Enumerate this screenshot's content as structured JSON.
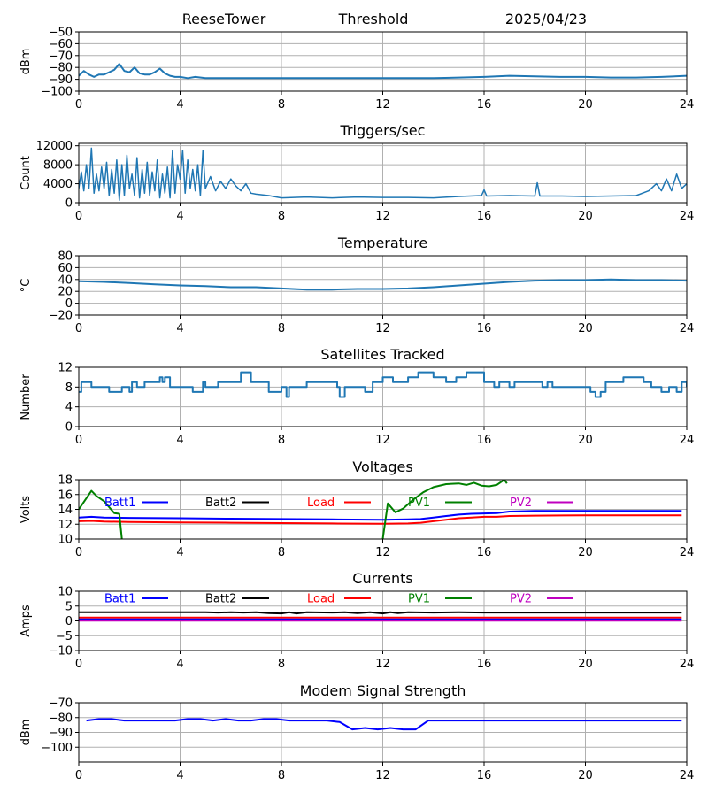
{
  "header": {
    "station": "ReeseTower",
    "mode": "Threshold",
    "date": "2025/04/23"
  },
  "colors": {
    "series": "#1f77b4",
    "batt1": "#0000ff",
    "batt2": "#000000",
    "load": "#ff0000",
    "pv1": "#008000",
    "pv2": "#bf00bf",
    "grid": "#b0b0b0"
  },
  "chart_data": [
    {
      "id": "threshold",
      "type": "line",
      "title": "",
      "ylabel": "dBm",
      "xlim": [
        0,
        24
      ],
      "ylim": [
        -100,
        -50
      ],
      "xticks": [
        0,
        4,
        8,
        12,
        16,
        20,
        24
      ],
      "yticks": [
        -50,
        -60,
        -70,
        -80,
        -90,
        -100
      ],
      "series": [
        {
          "color": "#1f77b4",
          "x": [
            0,
            0.2,
            0.4,
            0.6,
            0.8,
            1.0,
            1.2,
            1.4,
            1.6,
            1.8,
            2.0,
            2.2,
            2.4,
            2.6,
            2.8,
            3.0,
            3.2,
            3.4,
            3.6,
            3.8,
            4.0,
            4.3,
            4.6,
            5,
            6,
            7,
            8,
            9,
            10,
            11,
            12,
            13,
            14,
            15,
            16,
            17,
            18,
            19,
            20,
            21,
            22,
            23,
            24
          ],
          "y": [
            -87,
            -83,
            -86,
            -88,
            -86,
            -86,
            -84,
            -82,
            -77,
            -83,
            -84,
            -80,
            -85,
            -86,
            -86,
            -84,
            -81,
            -85,
            -87,
            -88,
            -88,
            -89,
            -88,
            -89,
            -89,
            -89,
            -89,
            -89,
            -89,
            -89,
            -89,
            -89,
            -89,
            -88.5,
            -88,
            -87,
            -87.5,
            -88,
            -88,
            -88.5,
            -88.5,
            -88,
            -87
          ]
        }
      ]
    },
    {
      "id": "triggers",
      "type": "line",
      "title": "Triggers/sec",
      "ylabel": "Count",
      "xlim": [
        0,
        24
      ],
      "ylim": [
        0,
        12500
      ],
      "xticks": [
        0,
        4,
        8,
        12,
        16,
        20,
        24
      ],
      "yticks": [
        0,
        4000,
        8000,
        12000
      ],
      "series": [
        {
          "color": "#1f77b4",
          "x": [
            0,
            0.1,
            0.2,
            0.3,
            0.4,
            0.5,
            0.6,
            0.7,
            0.8,
            0.9,
            1.0,
            1.1,
            1.2,
            1.3,
            1.4,
            1.5,
            1.6,
            1.7,
            1.8,
            1.9,
            2.0,
            2.1,
            2.2,
            2.3,
            2.4,
            2.5,
            2.6,
            2.7,
            2.8,
            2.9,
            3.0,
            3.1,
            3.2,
            3.3,
            3.4,
            3.5,
            3.6,
            3.7,
            3.8,
            3.9,
            4.0,
            4.1,
            4.2,
            4.3,
            4.4,
            4.5,
            4.6,
            4.7,
            4.8,
            4.9,
            5.0,
            5.2,
            5.4,
            5.6,
            5.8,
            6.0,
            6.2,
            6.4,
            6.6,
            6.8,
            7.0,
            7.5,
            8,
            9,
            10,
            11,
            12,
            13,
            14,
            15,
            15.9,
            16.0,
            16.1,
            17,
            18.0,
            18.1,
            18.2,
            19,
            20,
            21,
            22,
            22.5,
            22.8,
            23.0,
            23.2,
            23.4,
            23.6,
            23.8,
            24
          ],
          "y": [
            3000,
            6500,
            2500,
            8000,
            3000,
            11500,
            2000,
            6000,
            2500,
            7500,
            3000,
            8500,
            1500,
            7000,
            2000,
            9000,
            500,
            8000,
            1500,
            10000,
            3000,
            6000,
            1500,
            9500,
            1000,
            7000,
            2000,
            8500,
            1500,
            6500,
            2500,
            9000,
            1000,
            6000,
            2000,
            7500,
            1000,
            11000,
            2000,
            8000,
            5000,
            11000,
            2000,
            9000,
            3000,
            7000,
            2500,
            8000,
            1500,
            11000,
            3000,
            5500,
            2500,
            4500,
            3000,
            5000,
            3500,
            2500,
            4000,
            2000,
            1800,
            1500,
            1000,
            1200,
            1000,
            1200,
            1100,
            1100,
            1000,
            1300,
            1500,
            2700,
            1400,
            1500,
            1400,
            4200,
            1400,
            1400,
            1300,
            1400,
            1500,
            2500,
            4000,
            2500,
            5000,
            2500,
            6000,
            3000,
            4000
          ]
        }
      ]
    },
    {
      "id": "temperature",
      "type": "line",
      "title": "Temperature",
      "ylabel": "°C",
      "xlim": [
        0,
        24
      ],
      "ylim": [
        -20,
        80
      ],
      "xticks": [
        0,
        4,
        8,
        12,
        16,
        20,
        24
      ],
      "yticks": [
        -20,
        0,
        20,
        40,
        60,
        80
      ],
      "series": [
        {
          "color": "#1f77b4",
          "x": [
            0,
            1,
            2,
            3,
            4,
            5,
            6,
            7,
            8,
            9,
            10,
            11,
            12,
            13,
            14,
            15,
            16,
            17,
            18,
            19,
            20,
            21,
            22,
            23,
            24
          ],
          "y": [
            37,
            36,
            34,
            32,
            30,
            29,
            27,
            27,
            25,
            23,
            23,
            24,
            24,
            25,
            27,
            30,
            33,
            36,
            38,
            39,
            39,
            40,
            39,
            39,
            38
          ]
        }
      ]
    },
    {
      "id": "satellites",
      "type": "line",
      "title": "Satellites Tracked",
      "ylabel": "Number",
      "xlim": [
        0,
        24
      ],
      "ylim": [
        0,
        12
      ],
      "xticks": [
        0,
        4,
        8,
        12,
        16,
        20,
        24
      ],
      "yticks": [
        0,
        4,
        8,
        12
      ],
      "series": [
        {
          "color": "#1f77b4",
          "step": true,
          "x": [
            0,
            0.1,
            0.3,
            0.5,
            1.2,
            1.7,
            2.0,
            2.1,
            2.3,
            2.6,
            3.2,
            3.3,
            3.4,
            3.6,
            3.8,
            4.5,
            4.9,
            5.0,
            5.5,
            5.9,
            6.4,
            6.8,
            7.0,
            7.5,
            8.0,
            8.2,
            8.3,
            8.6,
            9.0,
            10.2,
            10.3,
            10.5,
            11.3,
            11.6,
            12.0,
            12.3,
            12.4,
            13.0,
            13.4,
            14.0,
            14.5,
            14.9,
            15.3,
            16.0,
            16.2,
            16.4,
            16.6,
            16.8,
            17.0,
            17.2,
            17.8,
            18.3,
            18.5,
            18.7,
            18.9,
            19.0,
            20.2,
            20.4,
            20.6,
            20.8,
            21.0,
            21.5,
            22.3,
            22.6,
            23.0,
            23.3,
            23.6,
            23.8,
            24
          ],
          "y": [
            7,
            9,
            9,
            8,
            7,
            8,
            7,
            9,
            8,
            9,
            10,
            9,
            10,
            8,
            8,
            7,
            9,
            8,
            9,
            9,
            11,
            9,
            9,
            7,
            8,
            6,
            8,
            8,
            9,
            8,
            6,
            8,
            7,
            9,
            10,
            10,
            9,
            10,
            11,
            10,
            9,
            10,
            11,
            9,
            9,
            8,
            9,
            9,
            8,
            9,
            9,
            8,
            9,
            8,
            8,
            8,
            7,
            6,
            7,
            9,
            9,
            10,
            9,
            8,
            7,
            8,
            7,
            9,
            8
          ]
        }
      ]
    },
    {
      "id": "voltages",
      "type": "line",
      "title": "Voltages",
      "ylabel": "Volts",
      "xlim": [
        0,
        24
      ],
      "ylim": [
        10,
        18
      ],
      "xticks": [
        0,
        4,
        8,
        12,
        16,
        20,
        24
      ],
      "yticks": [
        10,
        12,
        14,
        16,
        18
      ],
      "legend": [
        "Batt1",
        "Batt2",
        "Load",
        "PV1",
        "PV2"
      ],
      "series": [
        {
          "name": "Batt1",
          "color": "#0000ff",
          "x": [
            0,
            0.5,
            1,
            2,
            4,
            6,
            8,
            10,
            12,
            13,
            13.5,
            14,
            14.5,
            15,
            15.5,
            16,
            16.5,
            17,
            18,
            20,
            22,
            23.8
          ],
          "y": [
            12.9,
            13.0,
            12.9,
            12.85,
            12.8,
            12.75,
            12.7,
            12.65,
            12.6,
            12.65,
            12.7,
            12.9,
            13.1,
            13.3,
            13.4,
            13.45,
            13.5,
            13.7,
            13.8,
            13.8,
            13.8,
            13.8
          ]
        },
        {
          "name": "Load",
          "color": "#ff0000",
          "x": [
            0,
            0.5,
            1,
            2,
            4,
            6,
            8,
            10,
            12,
            13,
            13.5,
            14,
            14.5,
            15,
            15.5,
            16,
            16.5,
            17,
            18,
            20,
            22,
            23.8
          ],
          "y": [
            12.4,
            12.45,
            12.35,
            12.3,
            12.25,
            12.2,
            12.15,
            12.1,
            12.05,
            12.1,
            12.2,
            12.4,
            12.6,
            12.8,
            12.9,
            13.0,
            13.0,
            13.1,
            13.15,
            13.2,
            13.2,
            13.2
          ]
        },
        {
          "name": "PV1",
          "color": "#008000",
          "x": [
            0,
            0.5,
            0.7,
            1.0,
            1.2,
            1.4,
            1.6,
            1.7
          ],
          "y": [
            14.0,
            16.5,
            15.8,
            15.1,
            14.3,
            13.5,
            13.4,
            10.0
          ]
        },
        {
          "name": "PV1",
          "color": "#008000",
          "x": [
            12.0,
            12.2,
            12.5,
            12.8,
            13.2,
            13.6,
            14.0,
            14.5,
            15.0,
            15.3,
            15.6,
            15.9,
            16.2,
            16.5,
            16.8,
            16.9
          ],
          "y": [
            10.0,
            14.8,
            13.6,
            14.1,
            15.3,
            16.3,
            17.0,
            17.4,
            17.5,
            17.3,
            17.6,
            17.2,
            17.1,
            17.3,
            18.0,
            17.5
          ]
        }
      ]
    },
    {
      "id": "currents",
      "type": "line",
      "title": "Currents",
      "ylabel": "Amps",
      "xlim": [
        0,
        24
      ],
      "ylim": [
        -10,
        10
      ],
      "xticks": [
        0,
        4,
        8,
        12,
        16,
        20,
        24
      ],
      "yticks": [
        -10,
        -5,
        0,
        5,
        10
      ],
      "legend": [
        "Batt1",
        "Batt2",
        "Load",
        "PV1",
        "PV2"
      ],
      "series": [
        {
          "name": "Batt2",
          "color": "#000000",
          "x": [
            0,
            1,
            2,
            3,
            4,
            5,
            5.5,
            6,
            6.5,
            7,
            7.5,
            8,
            8.3,
            8.6,
            9,
            10,
            10.5,
            11,
            11.5,
            12,
            12.3,
            12.6,
            13,
            14,
            15,
            16,
            18,
            20,
            22,
            23.8
          ],
          "y": [
            2.9,
            2.9,
            2.9,
            2.9,
            2.9,
            2.9,
            2.8,
            2.9,
            2.8,
            2.9,
            2.6,
            2.5,
            2.9,
            2.5,
            2.9,
            2.8,
            2.9,
            2.6,
            2.9,
            2.5,
            2.9,
            2.6,
            2.9,
            2.8,
            2.9,
            2.8,
            2.8,
            2.8,
            2.8,
            2.8
          ]
        },
        {
          "name": "Load",
          "color": "#ff0000",
          "x": [
            0,
            23.8
          ],
          "y": [
            1.1,
            1.1
          ]
        },
        {
          "name": "Batt1",
          "color": "#0000ff",
          "x": [
            0,
            23.8
          ],
          "y": [
            0.5,
            0.5
          ]
        },
        {
          "name": "PV2",
          "color": "#bf00bf",
          "x": [
            0,
            23.8
          ],
          "y": [
            0.1,
            0.1
          ]
        }
      ]
    },
    {
      "id": "modem",
      "type": "line",
      "title": "Modem Signal Strength",
      "ylabel": "dBm",
      "xlim": [
        0,
        24
      ],
      "ylim": [
        -110,
        -70
      ],
      "xticks": [
        0,
        4,
        8,
        12,
        16,
        20,
        24
      ],
      "yticks": [
        -70,
        -80,
        -90,
        -100
      ],
      "series": [
        {
          "color": "#0000ff",
          "x": [
            0.3,
            0.8,
            1.3,
            1.8,
            2.3,
            3.3,
            3.8,
            4.3,
            4.8,
            5.3,
            5.8,
            6.3,
            6.8,
            7.3,
            7.8,
            8.3,
            8.8,
            9.3,
            9.8,
            10.3,
            10.8,
            11.3,
            11.8,
            12.3,
            12.8,
            13.3,
            13.8,
            14.3,
            15,
            16,
            18,
            20,
            22,
            23.8
          ],
          "y": [
            -82,
            -81,
            -81,
            -82,
            -82,
            -82,
            -82,
            -81,
            -81,
            -82,
            -81,
            -82,
            -82,
            -81,
            -81,
            -82,
            -82,
            -82,
            -82,
            -83,
            -88,
            -87,
            -88,
            -87,
            -88,
            -88,
            -82,
            -82,
            -82,
            -82,
            -82,
            -82,
            -82,
            -82
          ]
        }
      ]
    }
  ]
}
